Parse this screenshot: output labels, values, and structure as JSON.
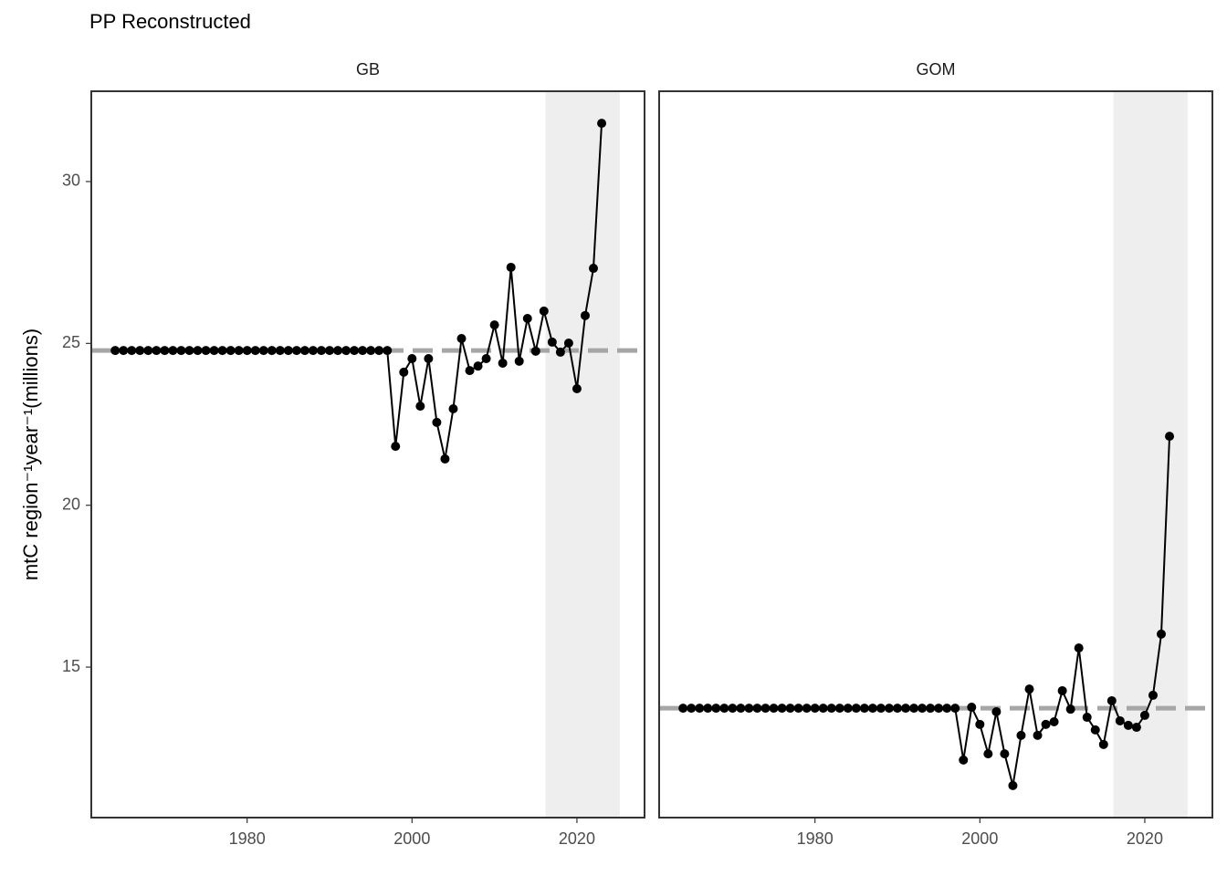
{
  "title": "PP Reconstructed",
  "ylabel": "mtC region⁻¹year⁻¹(millions)",
  "chart_data": [
    {
      "type": "line",
      "title": "GB",
      "color": "#000000",
      "x": [
        1964,
        1965,
        1966,
        1967,
        1968,
        1969,
        1970,
        1971,
        1972,
        1973,
        1974,
        1975,
        1976,
        1977,
        1978,
        1979,
        1980,
        1981,
        1982,
        1983,
        1984,
        1985,
        1986,
        1987,
        1988,
        1989,
        1990,
        1991,
        1992,
        1993,
        1994,
        1995,
        1996,
        1997,
        1998,
        1999,
        2000,
        2001,
        2002,
        2003,
        2004,
        2005,
        2006,
        2007,
        2008,
        2009,
        2010,
        2011,
        2012,
        2013,
        2014,
        2015,
        2016,
        2017,
        2018,
        2019,
        2020,
        2021,
        2022,
        2023
      ],
      "values": [
        24.78,
        24.78,
        24.78,
        24.78,
        24.78,
        24.78,
        24.78,
        24.78,
        24.78,
        24.78,
        24.78,
        24.78,
        24.78,
        24.78,
        24.78,
        24.78,
        24.78,
        24.78,
        24.78,
        24.78,
        24.78,
        24.78,
        24.78,
        24.78,
        24.78,
        24.78,
        24.78,
        24.78,
        24.78,
        24.78,
        24.78,
        24.78,
        24.78,
        24.78,
        21.82,
        24.11,
        24.53,
        23.06,
        24.53,
        22.56,
        21.43,
        22.98,
        25.15,
        24.16,
        24.3,
        24.53,
        25.57,
        24.39,
        27.35,
        24.45,
        25.77,
        24.76,
        26.0,
        25.04,
        24.73,
        25.01,
        23.6,
        25.86,
        27.32,
        31.8
      ],
      "reference_line": 24.78,
      "reference_color": "#a6a6a6",
      "shade_x": [
        2016.2,
        2025.2
      ],
      "shade_color": "#eeeeee",
      "xlim": [
        1961.1,
        2028.2
      ],
      "xticks": [
        1980,
        2000,
        2020
      ],
      "ylim": [
        10.35,
        32.79
      ],
      "yticks": [
        15,
        20,
        25,
        30
      ]
    },
    {
      "type": "line",
      "title": "GOM",
      "color": "#000000",
      "x": [
        1964,
        1965,
        1966,
        1967,
        1968,
        1969,
        1970,
        1971,
        1972,
        1973,
        1974,
        1975,
        1976,
        1977,
        1978,
        1979,
        1980,
        1981,
        1982,
        1983,
        1984,
        1985,
        1986,
        1987,
        1988,
        1989,
        1990,
        1991,
        1992,
        1993,
        1994,
        1995,
        1996,
        1997,
        1998,
        1999,
        2000,
        2001,
        2002,
        2003,
        2004,
        2005,
        2006,
        2007,
        2008,
        2009,
        2010,
        2011,
        2012,
        2013,
        2014,
        2015,
        2016,
        2017,
        2018,
        2019,
        2020,
        2021,
        2022,
        2023
      ],
      "values": [
        13.73,
        13.73,
        13.73,
        13.73,
        13.73,
        13.73,
        13.73,
        13.73,
        13.73,
        13.73,
        13.73,
        13.73,
        13.73,
        13.73,
        13.73,
        13.73,
        13.73,
        13.73,
        13.73,
        13.73,
        13.73,
        13.73,
        13.73,
        13.73,
        13.73,
        13.73,
        13.73,
        13.73,
        13.73,
        13.73,
        13.73,
        13.73,
        13.73,
        13.73,
        12.13,
        13.76,
        13.23,
        12.32,
        13.62,
        12.32,
        11.34,
        12.89,
        14.32,
        12.89,
        13.23,
        13.31,
        14.27,
        13.7,
        15.59,
        13.45,
        13.06,
        12.61,
        13.96,
        13.34,
        13.2,
        13.14,
        13.51,
        14.13,
        16.02,
        22.13
      ],
      "reference_line": 13.73,
      "reference_color": "#a6a6a6",
      "shade_x": [
        2016.2,
        2025.2
      ],
      "shade_color": "#eeeeee",
      "xlim": [
        1961.1,
        2028.2
      ],
      "xticks": [
        1980,
        2000,
        2020
      ],
      "ylim": [
        10.35,
        32.79
      ]
    }
  ]
}
